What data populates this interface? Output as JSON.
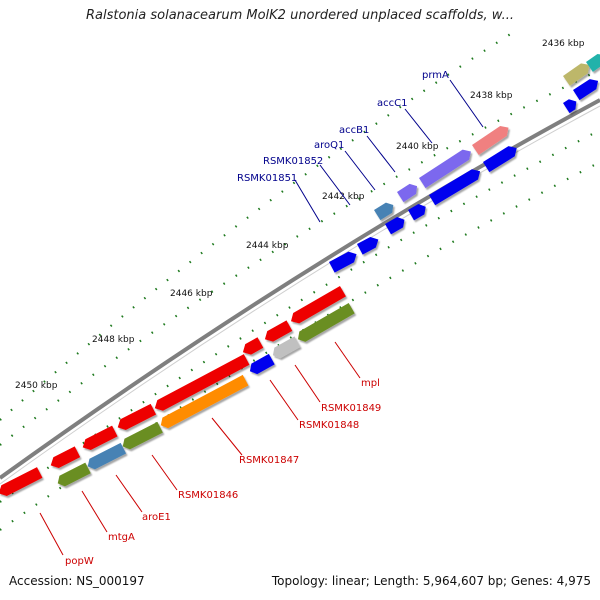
{
  "title": "Ralstonia solanacearum MolK2 unordered unplaced scaffolds, w...",
  "footer": {
    "accession": "Accession: NS_000197",
    "topology": "Topology: linear; Length: 5,964,607 bp; Genes: 4,975"
  },
  "colors": {
    "backbone": "#7f7f7f",
    "forward_label": "#00008b",
    "reverse_label": "#cc0000",
    "tick": "#1f7a1f"
  },
  "scale_labels": [
    "2436 kbp",
    "2438 kbp",
    "2440 kbp",
    "2442 kbp",
    "2444 kbp",
    "2446 kbp",
    "2448 kbp",
    "2450 kbp"
  ],
  "forward_genes": [
    "prmA",
    "accC1",
    "accB1",
    "aroQ1",
    "RSMK01852",
    "RSMK01851"
  ],
  "reverse_genes": [
    "mpl",
    "RSMK01849",
    "RSMK01848",
    "RSMK01847",
    "RSMK01846",
    "aroE1",
    "mtgA",
    "popW"
  ]
}
